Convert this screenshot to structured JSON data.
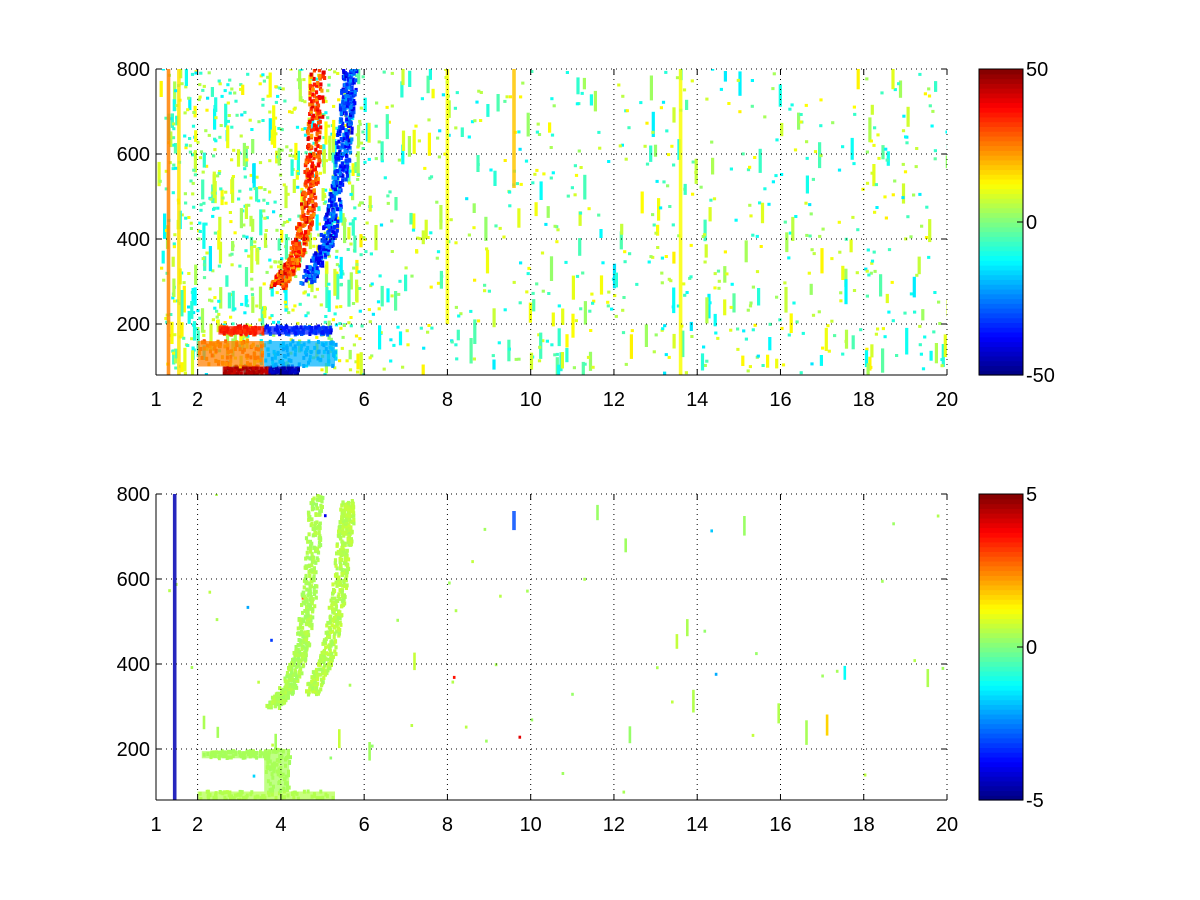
{
  "chart_data": [
    {
      "type": "heatmap",
      "title": "",
      "xlabel": "",
      "ylabel": "",
      "xlim": [
        1,
        20
      ],
      "ylim": [
        80,
        800
      ],
      "x_ticks": [
        1,
        2,
        4,
        6,
        8,
        10,
        12,
        14,
        16,
        18,
        20
      ],
      "y_ticks": [
        200,
        400,
        600,
        800
      ],
      "grid": true,
      "colormap": "jet",
      "colorbar": {
        "min": -50,
        "max": 50,
        "ticks": [
          50,
          0,
          -50
        ]
      },
      "features": [
        {
          "kind": "band",
          "x0": 2.6,
          "x1": 3.7,
          "y0": 80,
          "y1": 100,
          "value": 45
        },
        {
          "kind": "band",
          "x0": 3.7,
          "x1": 4.4,
          "y0": 80,
          "y1": 100,
          "value": -45
        },
        {
          "kind": "band",
          "x0": 2.0,
          "x1": 3.6,
          "y0": 100,
          "y1": 160,
          "value": 25
        },
        {
          "kind": "band",
          "x0": 3.6,
          "x1": 5.3,
          "y0": 100,
          "y1": 160,
          "value": -20
        },
        {
          "kind": "band",
          "x0": 2.5,
          "x1": 3.6,
          "y0": 175,
          "y1": 195,
          "value": 35
        },
        {
          "kind": "band",
          "x0": 3.6,
          "x1": 5.2,
          "y0": 175,
          "y1": 195,
          "value": -35
        },
        {
          "kind": "ridge",
          "points": [
            [
              3.9,
              290
            ],
            [
              4.3,
              350
            ],
            [
              4.6,
              450
            ],
            [
              4.75,
              600
            ],
            [
              4.85,
              800
            ]
          ],
          "value": 35
        },
        {
          "kind": "ridge",
          "points": [
            [
              4.6,
              300
            ],
            [
              5.1,
              400
            ],
            [
              5.4,
              550
            ],
            [
              5.55,
              700
            ],
            [
              5.65,
              800
            ]
          ],
          "value": -35
        },
        {
          "kind": "stripe",
          "x": 1.3,
          "y0": 80,
          "y1": 800,
          "value": 25
        },
        {
          "kind": "stripe",
          "x": 1.55,
          "y0": 80,
          "y1": 800,
          "value": 15
        },
        {
          "kind": "stripe",
          "x": 8.0,
          "y0": 200,
          "y1": 800,
          "value": 12
        },
        {
          "kind": "stripe",
          "x": 9.6,
          "y0": 520,
          "y1": 800,
          "value": 18
        },
        {
          "kind": "stripe",
          "x": 13.6,
          "y0": 80,
          "y1": 800,
          "value": 12
        }
      ]
    },
    {
      "type": "heatmap",
      "title": "",
      "xlabel": "",
      "ylabel": "",
      "xlim": [
        1,
        20
      ],
      "ylim": [
        80,
        800
      ],
      "x_ticks": [
        1,
        2,
        4,
        6,
        8,
        10,
        12,
        14,
        16,
        18,
        20
      ],
      "y_ticks": [
        200,
        400,
        600,
        800
      ],
      "grid": true,
      "colormap": "jet",
      "colorbar": {
        "min": -5,
        "max": 5,
        "ticks": [
          5,
          0,
          -5
        ]
      },
      "features": [
        {
          "kind": "band",
          "x0": 2.0,
          "x1": 5.3,
          "y0": 80,
          "y1": 100,
          "value": 0.5
        },
        {
          "kind": "band",
          "x0": 2.1,
          "x1": 3.7,
          "y0": 178,
          "y1": 195,
          "value": 0.4
        },
        {
          "kind": "band",
          "x0": 3.6,
          "x1": 4.2,
          "y0": 100,
          "y1": 200,
          "value": 0.4
        },
        {
          "kind": "ridge",
          "points": [
            [
              3.8,
              300
            ],
            [
              4.2,
              350
            ],
            [
              4.5,
              450
            ],
            [
              4.7,
              600
            ],
            [
              4.8,
              800
            ]
          ],
          "value": 0.5
        },
        {
          "kind": "ridge",
          "points": [
            [
              4.7,
              330
            ],
            [
              5.1,
              420
            ],
            [
              5.35,
              560
            ],
            [
              5.5,
              700
            ],
            [
              5.6,
              780
            ]
          ],
          "value": 0.6
        },
        {
          "kind": "stripe",
          "x": 1.45,
          "y0": 80,
          "y1": 800,
          "value": -4.5
        },
        {
          "kind": "stripe",
          "x": 9.6,
          "y0": 715,
          "y1": 760,
          "value": -3
        }
      ]
    }
  ]
}
